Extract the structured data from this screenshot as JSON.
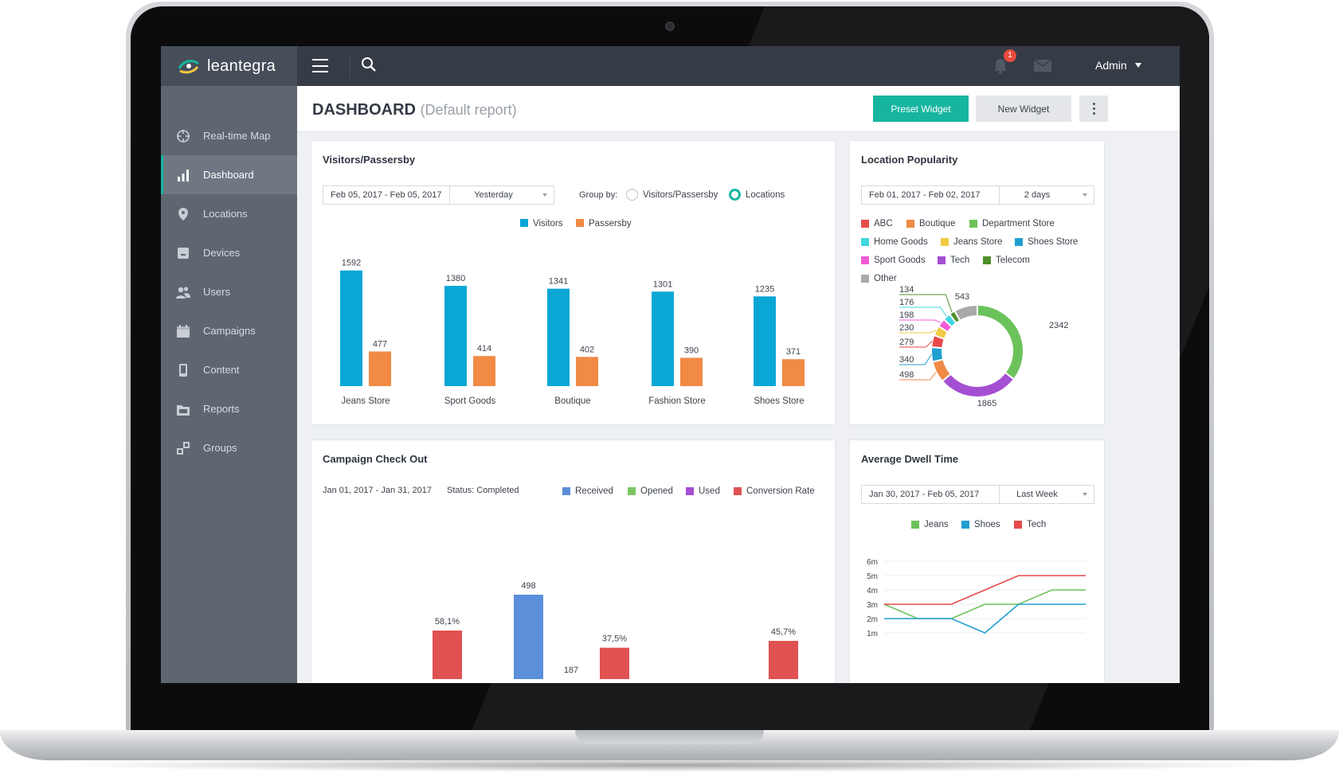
{
  "app": {
    "logo_text": "leantegra"
  },
  "sidebar": {
    "items": [
      {
        "label": "Real-time Map",
        "icon": "crosshair-icon"
      },
      {
        "label": "Dashboard",
        "icon": "bar-chart-icon",
        "active": true
      },
      {
        "label": "Locations",
        "icon": "map-pin-icon"
      },
      {
        "label": "Devices",
        "icon": "device-icon"
      },
      {
        "label": "Users",
        "icon": "users-icon"
      },
      {
        "label": "Campaigns",
        "icon": "calendar-icon"
      },
      {
        "label": "Content",
        "icon": "phone-icon"
      },
      {
        "label": "Reports",
        "icon": "folder-icon"
      },
      {
        "label": "Groups",
        "icon": "groups-icon"
      }
    ]
  },
  "topbar": {
    "notification_count": "1",
    "user": "Admin"
  },
  "header": {
    "title": "DASHBOARD",
    "subtitle": "(Default report)",
    "preset_label": "Preset Widget",
    "new_label": "New Widget"
  },
  "colors": {
    "accent": "#17b5a0",
    "visitors": "#0aa7d6",
    "passersby": "#f08a45",
    "received": "#5b8fd9",
    "opened": "#7cc561",
    "used": "#a54fd3",
    "conversion": "#e05252"
  },
  "visitors_card": {
    "title": "Visitors/Passersby",
    "date_range": "Feb 05, 2017 - Feb 05, 2017",
    "period": "Yesterday",
    "group_by_label": "Group by:",
    "option_a": "Visitors/Passersby",
    "option_b": "Locations",
    "selected_option": "Locations"
  },
  "location_card": {
    "title": "Location Popularity",
    "date_range": "Feb 01, 2017 - Feb 02, 2017",
    "period": "2 days"
  },
  "campaign_card": {
    "title": "Campaign Check Out",
    "date_range": "Jan 01, 2017 - Jan 31, 2017",
    "status": "Status: Completed"
  },
  "dwell_card": {
    "title": "Average Dwell Time",
    "date_range": "Jan 30, 2017 - Feb 05, 2017",
    "period": "Last Week"
  },
  "chart_data": [
    {
      "type": "bar",
      "title": "Visitors/Passersby",
      "categories": [
        "Jeans Store",
        "Sport Goods",
        "Boutique",
        "Fashion Store",
        "Shoes Store"
      ],
      "series": [
        {
          "name": "Visitors",
          "color": "#0aa7d6",
          "values": [
            1592,
            1380,
            1341,
            1301,
            1235
          ]
        },
        {
          "name": "Passersby",
          "color": "#f08a45",
          "values": [
            477,
            414,
            402,
            390,
            371
          ]
        }
      ],
      "ylim": [
        0,
        1600
      ]
    },
    {
      "type": "pie",
      "title": "Location Popularity",
      "donut": true,
      "legend": [
        {
          "name": "ABC",
          "color": "#e84a4a"
        },
        {
          "name": "Boutique",
          "color": "#f08a45"
        },
        {
          "name": "Department Store",
          "color": "#6cc25a"
        },
        {
          "name": "Home Goods",
          "color": "#3fd7e0"
        },
        {
          "name": "Jeans Store",
          "color": "#f1c944"
        },
        {
          "name": "Shoes Store",
          "color": "#1f9fd0"
        },
        {
          "name": "Sport Goods",
          "color": "#f25bd6"
        },
        {
          "name": "Tech",
          "color": "#a54fd3"
        },
        {
          "name": "Telecom",
          "color": "#4e8f2a"
        },
        {
          "name": "Other",
          "color": "#a9a9a9"
        }
      ],
      "slices": [
        {
          "value": 2342,
          "color": "#6cc25a"
        },
        {
          "value": 1865,
          "color": "#a54fd3"
        },
        {
          "value": 498,
          "color": "#f08a45"
        },
        {
          "value": 340,
          "color": "#1f9fd0"
        },
        {
          "value": 279,
          "color": "#e84a4a"
        },
        {
          "value": 230,
          "color": "#f1c944"
        },
        {
          "value": 198,
          "color": "#f25bd6"
        },
        {
          "value": 176,
          "color": "#3fd7e0"
        },
        {
          "value": 134,
          "color": "#4e8f2a"
        },
        {
          "value": 543,
          "color": "#a9a9a9"
        }
      ]
    },
    {
      "type": "bar",
      "title": "Campaign Check Out",
      "legend": [
        {
          "name": "Received",
          "color": "#5b8fd9"
        },
        {
          "name": "Opened",
          "color": "#7cc561"
        },
        {
          "name": "Used",
          "color": "#a54fd3"
        },
        {
          "name": "Conversion Rate",
          "color": "#e05252"
        }
      ],
      "visible_bars": [
        {
          "label": "58,1%",
          "value": 58.1,
          "color": "#e05252",
          "kind": "percent"
        },
        {
          "label": "498",
          "value": 498,
          "color": "#5b8fd9",
          "kind": "count"
        },
        {
          "label": "187",
          "value": 187,
          "color": "#7cc561",
          "kind": "count"
        },
        {
          "label": "37,5%",
          "value": 37.5,
          "color": "#e05252",
          "kind": "percent"
        },
        {
          "label": "45,7%",
          "value": 45.7,
          "color": "#e05252",
          "kind": "percent"
        }
      ]
    },
    {
      "type": "line",
      "title": "Average Dwell Time",
      "y_ticks": [
        "6m",
        "5m",
        "4m",
        "3m",
        "2m",
        "1m"
      ],
      "ylim": [
        1,
        6
      ],
      "x": [
        0,
        1,
        2,
        3,
        4,
        5,
        6
      ],
      "series": [
        {
          "name": "Jeans",
          "color": "#6cc25a",
          "values": [
            3,
            2,
            2,
            3,
            3,
            4,
            4
          ]
        },
        {
          "name": "Shoes",
          "color": "#1f9fd0",
          "values": [
            2,
            2,
            2,
            1,
            3,
            3,
            3
          ]
        },
        {
          "name": "Tech",
          "color": "#e84a4a",
          "values": [
            3,
            3,
            3,
            4,
            5,
            5,
            5
          ]
        }
      ]
    }
  ]
}
